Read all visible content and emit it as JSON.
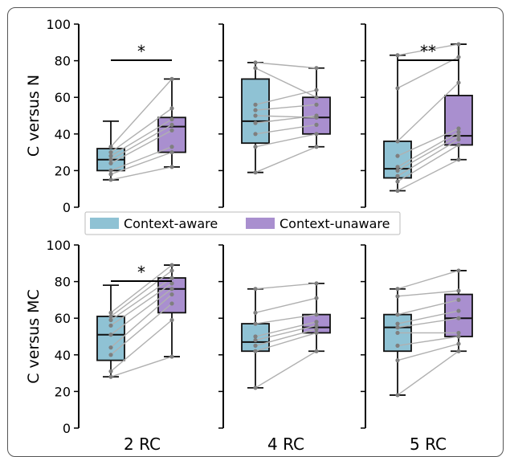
{
  "colors": {
    "aware": "#8fc2d4",
    "unaware": "#a98fcf",
    "paired_line": "#b0b0b0",
    "paired_dot": "#7f7f7f"
  },
  "legend": [
    "Context-aware",
    "Context-unaware"
  ],
  "xlabels_partial": [
    "2 RC",
    "4 RC",
    "5 RC"
  ],
  "chart_data": [
    {
      "type": "box",
      "row": 0,
      "col": 0,
      "ylabel": "C versus N",
      "ylim": [
        0,
        100
      ],
      "yticks": [
        0,
        20,
        40,
        60,
        80,
        100
      ],
      "significance": "*",
      "series": [
        {
          "name": "Context-aware",
          "stats": {
            "min": 15,
            "q1": 20,
            "median": 26,
            "q3": 32,
            "max": 47
          }
        },
        {
          "name": "Context-unaware",
          "stats": {
            "min": 22,
            "q1": 30,
            "median": 44,
            "q3": 49,
            "max": 70
          }
        }
      ],
      "pairs": [
        [
          15,
          22
        ],
        [
          18,
          30
        ],
        [
          20,
          33
        ],
        [
          24,
          42
        ],
        [
          26,
          45
        ],
        [
          28,
          48
        ],
        [
          30,
          54
        ],
        [
          33,
          70
        ]
      ]
    },
    {
      "type": "box",
      "row": 0,
      "col": 1,
      "ylabel": "",
      "ylim": [
        0,
        100
      ],
      "yticks": [
        0,
        20,
        40,
        60,
        80,
        100
      ],
      "significance": "",
      "series": [
        {
          "name": "Context-aware",
          "stats": {
            "min": 19,
            "q1": 35,
            "median": 47,
            "q3": 70,
            "max": 79
          }
        },
        {
          "name": "Context-unaware",
          "stats": {
            "min": 33,
            "q1": 40,
            "median": 49,
            "q3": 60,
            "max": 76
          }
        }
      ],
      "pairs": [
        [
          19,
          33
        ],
        [
          33,
          40
        ],
        [
          40,
          45
        ],
        [
          46,
          50
        ],
        [
          50,
          49
        ],
        [
          53,
          56
        ],
        [
          56,
          64
        ],
        [
          76,
          60
        ],
        [
          79,
          76
        ]
      ]
    },
    {
      "type": "box",
      "row": 0,
      "col": 2,
      "ylabel": "",
      "ylim": [
        0,
        100
      ],
      "yticks": [
        0,
        20,
        40,
        60,
        80,
        100
      ],
      "significance": "**",
      "series": [
        {
          "name": "Context-aware",
          "stats": {
            "min": 9,
            "q1": 16,
            "median": 21,
            "q3": 36,
            "max": 83
          }
        },
        {
          "name": "Context-unaware",
          "stats": {
            "min": 26,
            "q1": 34,
            "median": 39,
            "q3": 61,
            "max": 89
          }
        }
      ],
      "pairs": [
        [
          9,
          26
        ],
        [
          14,
          34
        ],
        [
          17,
          37
        ],
        [
          20,
          39
        ],
        [
          22,
          41
        ],
        [
          28,
          43
        ],
        [
          36,
          68
        ],
        [
          65,
          82
        ],
        [
          83,
          89
        ]
      ]
    },
    {
      "type": "box",
      "row": 1,
      "col": 0,
      "ylabel": "C versus MC",
      "ylim": [
        0,
        100
      ],
      "yticks": [
        0,
        20,
        40,
        60,
        80,
        100
      ],
      "significance": "*",
      "series": [
        {
          "name": "Context-aware",
          "stats": {
            "min": 28,
            "q1": 37,
            "median": 51,
            "q3": 61,
            "max": 78
          }
        },
        {
          "name": "Context-unaware",
          "stats": {
            "min": 39,
            "q1": 63,
            "median": 76,
            "q3": 82,
            "max": 89
          }
        }
      ],
      "pairs": [
        [
          28,
          39
        ],
        [
          31,
          59
        ],
        [
          40,
          68
        ],
        [
          44,
          73
        ],
        [
          51,
          76
        ],
        [
          56,
          79
        ],
        [
          59,
          82
        ],
        [
          61,
          86
        ],
        [
          63,
          89
        ]
      ]
    },
    {
      "type": "box",
      "row": 1,
      "col": 1,
      "ylabel": "",
      "ylim": [
        0,
        100
      ],
      "yticks": [
        0,
        20,
        40,
        60,
        80,
        100
      ],
      "significance": "",
      "series": [
        {
          "name": "Context-aware",
          "stats": {
            "min": 22,
            "q1": 42,
            "median": 47,
            "q3": 57,
            "max": 76
          }
        },
        {
          "name": "Context-unaware",
          "stats": {
            "min": 42,
            "q1": 52,
            "median": 55,
            "q3": 62,
            "max": 79
          }
        }
      ],
      "pairs": [
        [
          22,
          42
        ],
        [
          42,
          52
        ],
        [
          45,
          54
        ],
        [
          48,
          56
        ],
        [
          50,
          58
        ],
        [
          57,
          62
        ],
        [
          63,
          71
        ],
        [
          76,
          79
        ]
      ]
    },
    {
      "type": "box",
      "row": 1,
      "col": 2,
      "ylabel": "",
      "ylim": [
        0,
        100
      ],
      "yticks": [
        0,
        20,
        40,
        60,
        80,
        100
      ],
      "significance": "",
      "series": [
        {
          "name": "Context-aware",
          "stats": {
            "min": 18,
            "q1": 42,
            "median": 55,
            "q3": 62,
            "max": 76
          }
        },
        {
          "name": "Context-unaware",
          "stats": {
            "min": 42,
            "q1": 50,
            "median": 60,
            "q3": 73,
            "max": 86
          }
        }
      ],
      "pairs": [
        [
          18,
          42
        ],
        [
          37,
          46
        ],
        [
          45,
          50
        ],
        [
          52,
          52
        ],
        [
          55,
          60
        ],
        [
          57,
          64
        ],
        [
          62,
          70
        ],
        [
          72,
          75
        ],
        [
          76,
          86
        ]
      ]
    }
  ]
}
